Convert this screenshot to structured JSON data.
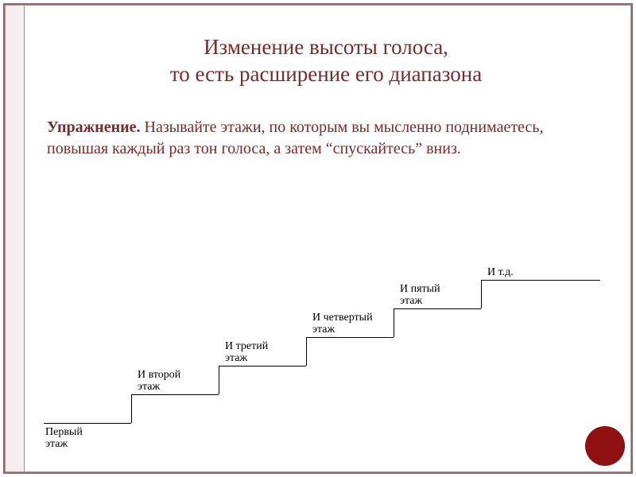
{
  "title_line1": "Изменение высоты голоса,",
  "title_line2": "то есть расширение его диапазона",
  "paragraph_bold": "Упражнение.",
  "paragraph_rest": " Называйте этажи, по которым вы мысленно поднимаетесь, повышая каждый раз тон голоса, а затем “спускайтесь” вниз.",
  "colors": {
    "heading": "#7a2a2a",
    "frame": "#8a6a6a",
    "circle": "#8f1010",
    "leftbar": "#f5eeee",
    "line": "#000000"
  },
  "stairs": {
    "step_width": 110,
    "step_height": 36,
    "labels": [
      "Первый\nэтаж",
      "И второй\nэтаж",
      "И третий\nэтаж",
      "И четвертый\nэтаж",
      "И пятый\nэтаж",
      "И т.д."
    ],
    "label_fontsize": 14
  }
}
